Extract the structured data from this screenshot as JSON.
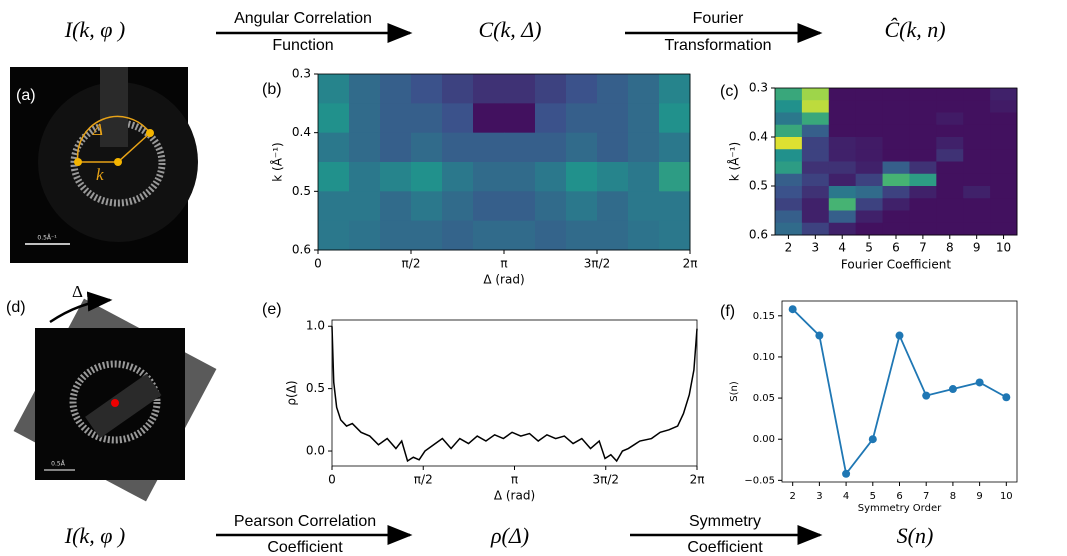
{
  "header": {
    "left": "I(k, φ )",
    "arrow1": [
      "Angular Correlation",
      "Function"
    ],
    "mid": "C(k, Δ)",
    "arrow2": [
      "Fourier",
      "Transformation"
    ],
    "right": "Ĉ(k, n)"
  },
  "footer": {
    "left": "I(k, φ )",
    "arrow1": [
      "Pearson Correlation",
      "Coefficient"
    ],
    "mid": "ρ(Δ)",
    "arrow2": [
      "Symmetry",
      "Coefficient"
    ],
    "right": "S(n)"
  },
  "images": {
    "a": {
      "label": "(a)",
      "delta": "Δ",
      "k": "k",
      "scale": "0.5Å⁻¹"
    },
    "d": {
      "label": "(d)",
      "delta": "Δ",
      "scale": "0.5Å"
    }
  },
  "chart_data": [
    {
      "type": "heatmap",
      "label": "(b)",
      "xlabel": "Δ (rad)",
      "ylabel": "k (Å⁻¹)",
      "xlim": [
        0,
        6.2832
      ],
      "ylim": [
        0.3,
        0.6
      ],
      "y_inverted": true,
      "zlim": [
        0,
        1
      ],
      "xticks": [
        0,
        {
          "value": 1.5708,
          "label": "π/2"
        },
        {
          "value": 3.1416,
          "label": "π"
        },
        {
          "value": 4.7124,
          "label": "3π/2"
        },
        {
          "value": 6.2832,
          "label": "2π"
        }
      ],
      "yticks": [
        0.3,
        0.4,
        0.5,
        0.6
      ],
      "z": [
        [
          0.45,
          0.35,
          0.3,
          0.25,
          0.2,
          0.15,
          0.15,
          0.2,
          0.25,
          0.3,
          0.35,
          0.45
        ],
        [
          0.5,
          0.35,
          0.3,
          0.3,
          0.25,
          0.05,
          0.05,
          0.25,
          0.3,
          0.3,
          0.35,
          0.5
        ],
        [
          0.4,
          0.35,
          0.3,
          0.35,
          0.3,
          0.3,
          0.3,
          0.3,
          0.35,
          0.3,
          0.35,
          0.4
        ],
        [
          0.5,
          0.4,
          0.45,
          0.5,
          0.4,
          0.35,
          0.35,
          0.4,
          0.5,
          0.45,
          0.4,
          0.55
        ],
        [
          0.4,
          0.4,
          0.35,
          0.4,
          0.35,
          0.3,
          0.3,
          0.35,
          0.4,
          0.35,
          0.4,
          0.4
        ],
        [
          0.4,
          0.38,
          0.35,
          0.35,
          0.32,
          0.35,
          0.35,
          0.32,
          0.35,
          0.35,
          0.38,
          0.4
        ]
      ]
    },
    {
      "type": "heatmap",
      "label": "(c)",
      "xlabel": "Fourier Coefficient",
      "ylabel": "k (Å⁻¹)",
      "categories": [
        2,
        3,
        4,
        5,
        6,
        7,
        8,
        9,
        10
      ],
      "ylim": [
        0.3,
        0.6
      ],
      "y_inverted": true,
      "zlim": [
        0,
        1
      ],
      "yticks": [
        0.3,
        0.4,
        0.5,
        0.6
      ],
      "z": [
        [
          0.6,
          0.85,
          0.05,
          0.05,
          0.05,
          0.05,
          0.05,
          0.05,
          0.1
        ],
        [
          0.5,
          0.9,
          0.05,
          0.05,
          0.05,
          0.05,
          0.05,
          0.05,
          0.08
        ],
        [
          0.4,
          0.6,
          0.05,
          0.05,
          0.05,
          0.05,
          0.08,
          0.05,
          0.05
        ],
        [
          0.6,
          0.3,
          0.05,
          0.05,
          0.05,
          0.05,
          0.05,
          0.05,
          0.05
        ],
        [
          0.95,
          0.2,
          0.1,
          0.08,
          0.05,
          0.05,
          0.1,
          0.05,
          0.05
        ],
        [
          0.5,
          0.2,
          0.1,
          0.08,
          0.05,
          0.05,
          0.15,
          0.05,
          0.05
        ],
        [
          0.55,
          0.15,
          0.15,
          0.1,
          0.3,
          0.15,
          0.05,
          0.05,
          0.05
        ],
        [
          0.3,
          0.2,
          0.1,
          0.2,
          0.65,
          0.55,
          0.05,
          0.05,
          0.05
        ],
        [
          0.25,
          0.15,
          0.4,
          0.35,
          0.2,
          0.1,
          0.05,
          0.1,
          0.05
        ],
        [
          0.2,
          0.1,
          0.65,
          0.2,
          0.1,
          0.05,
          0.05,
          0.05,
          0.05
        ],
        [
          0.3,
          0.1,
          0.3,
          0.1,
          0.05,
          0.05,
          0.05,
          0.05,
          0.05
        ],
        [
          0.35,
          0.2,
          0.1,
          0.05,
          0.05,
          0.05,
          0.05,
          0.05,
          0.05
        ]
      ]
    },
    {
      "type": "line",
      "label": "(e)",
      "xlabel": "Δ (rad)",
      "ylabel": "ρ(Δ)",
      "color": "#000000",
      "xlim": [
        0,
        6.2832
      ],
      "ylim": [
        -0.12,
        1.05
      ],
      "xticks": [
        0,
        {
          "value": 1.5708,
          "label": "π/2"
        },
        {
          "value": 3.1416,
          "label": "π"
        },
        {
          "value": 4.7124,
          "label": "3π/2"
        },
        {
          "value": 6.2832,
          "label": "2π"
        }
      ],
      "yticks": [
        {
          "value": 0,
          "label": "0.0"
        },
        0.5,
        {
          "value": 1,
          "label": "1.0"
        }
      ],
      "x": [
        0,
        0.03,
        0.08,
        0.15,
        0.25,
        0.35,
        0.5,
        0.65,
        0.8,
        0.95,
        1.1,
        1.2,
        1.3,
        1.4,
        1.5,
        1.6,
        1.75,
        1.9,
        2.05,
        2.2,
        2.35,
        2.5,
        2.65,
        2.8,
        2.95,
        3.1,
        3.25,
        3.4,
        3.55,
        3.7,
        3.85,
        4.0,
        4.15,
        4.3,
        4.45,
        4.6,
        4.7,
        4.8,
        4.9,
        5.0,
        5.1,
        5.3,
        5.5,
        5.65,
        5.8,
        5.95,
        6.05,
        6.15,
        6.23,
        6.2832
      ],
      "values": [
        1.0,
        0.55,
        0.35,
        0.25,
        0.2,
        0.22,
        0.15,
        0.12,
        0.05,
        0.1,
        0.02,
        0.08,
        -0.08,
        -0.05,
        -0.07,
        0.0,
        0.05,
        0.1,
        0.02,
        0.1,
        0.06,
        0.12,
        0.08,
        0.13,
        0.1,
        0.15,
        0.12,
        0.14,
        0.08,
        0.13,
        0.1,
        0.12,
        0.06,
        0.1,
        0.02,
        0.08,
        -0.06,
        -0.03,
        -0.08,
        0.0,
        0.02,
        0.08,
        0.1,
        0.15,
        0.17,
        0.2,
        0.3,
        0.45,
        0.65,
        0.98
      ]
    },
    {
      "type": "line",
      "label": "(f)",
      "xlabel": "Symmetry Order",
      "ylabel": "S(n)",
      "color": "#1f77b4",
      "markers": true,
      "xlim": [
        1.6,
        10.4
      ],
      "ylim": [
        -0.052,
        0.168
      ],
      "xticks": [
        2,
        3,
        4,
        5,
        6,
        7,
        8,
        9,
        10
      ],
      "yticks": [
        {
          "value": -0.05,
          "label": "−0.05"
        },
        {
          "value": 0,
          "label": "0.00"
        },
        0.05,
        {
          "value": 0.1,
          "label": "0.10"
        },
        0.15
      ],
      "x": [
        2,
        3,
        4,
        5,
        6,
        7,
        8,
        9,
        10
      ],
      "values": [
        0.158,
        0.126,
        -0.042,
        0.0,
        0.126,
        0.053,
        0.061,
        0.069,
        0.051
      ]
    }
  ]
}
